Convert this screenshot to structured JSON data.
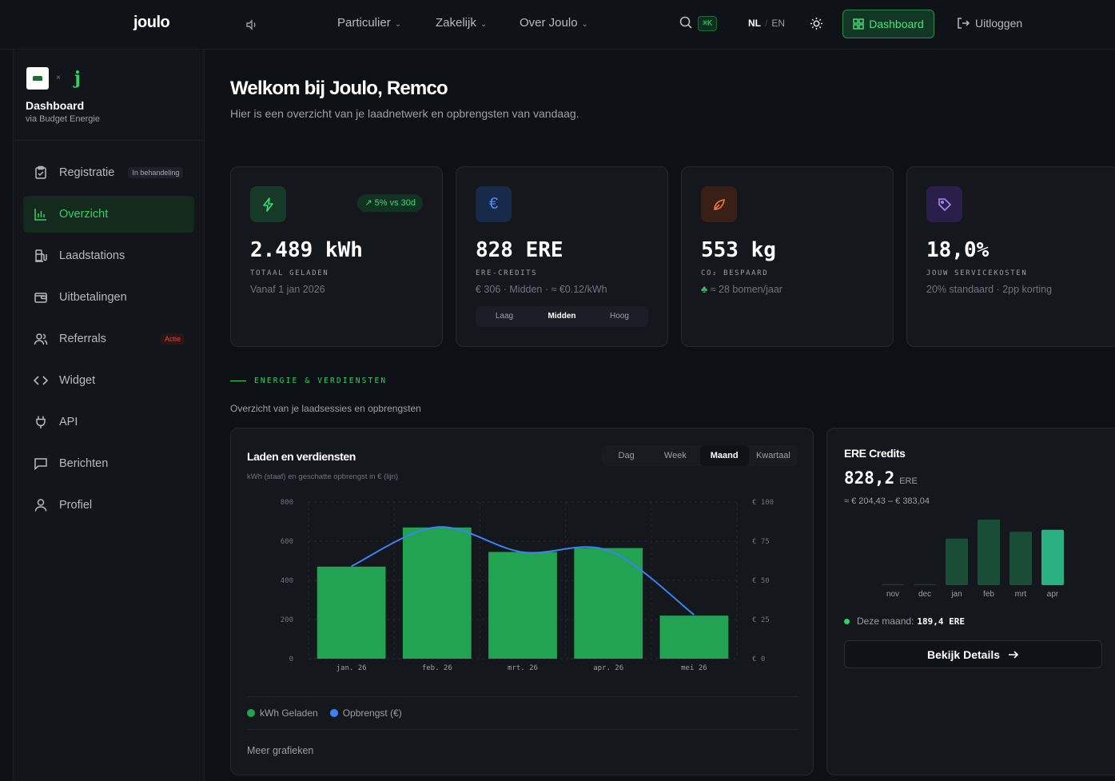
{
  "nav": {
    "logo": "joulo",
    "links": [
      {
        "label": "Particulier"
      },
      {
        "label": "Zakelijk"
      },
      {
        "label": "Over Joulo"
      }
    ],
    "shortcut": "⌘K",
    "lang_active": "NL",
    "lang_other": "EN",
    "dashboard_label": "Dashboard",
    "logout_label": "Uitloggen"
  },
  "sidebar": {
    "title": "Dashboard",
    "subtitle": "via Budget Energie",
    "brand_sep": "×",
    "brand_mark": "j",
    "items": [
      {
        "label": "Registratie",
        "badge": "In behandeling",
        "icon": "clipboard-check-icon"
      },
      {
        "label": "Overzicht",
        "icon": "bar-chart-icon",
        "active": true
      },
      {
        "label": "Laadstations",
        "icon": "fuel-pump-icon"
      },
      {
        "label": "Uitbetalingen",
        "icon": "wallet-icon"
      },
      {
        "label": "Referrals",
        "badge": "Actie",
        "icon": "users-icon"
      },
      {
        "label": "Widget",
        "icon": "code-icon"
      },
      {
        "label": "API",
        "icon": "plug-icon"
      },
      {
        "label": "Berichten",
        "icon": "message-icon"
      },
      {
        "label": "Profiel",
        "icon": "user-icon"
      }
    ]
  },
  "main": {
    "title": "Welkom bij Joulo, Remco",
    "subtitle": "Hier is een overzicht van je laadnetwerk en opbrengsten van vandaag."
  },
  "stats": [
    {
      "value": "2.489 kWh",
      "label": "TOTAAL GELADEN",
      "note": "Vanaf 1 jan 2026",
      "trend": "5% vs 30d",
      "icon": "bolt-icon",
      "icon_bg": "#173a28",
      "icon_color": "#3dd97a"
    },
    {
      "value": "828 ERE",
      "label": "ERE-CREDITS",
      "note": "€ 306 · Midden · ≈ €0.12/kWh",
      "icon": "euro-icon",
      "icon_bg": "#172a4a",
      "icon_color": "#4e8df5",
      "segments": [
        "Laag",
        "Midden",
        "Hoog"
      ],
      "segment_active": "Midden"
    },
    {
      "value": "553 kg",
      "label": "CO₂ BESPAARD",
      "note": "≈ 28 bomen/jaar",
      "icon": "leaf-icon",
      "icon_bg": "#3a1f17",
      "icon_color": "#f07a3c"
    },
    {
      "value": "18,0%",
      "label": "JOUW SERVICEKOSTEN",
      "note": "20% standaard · 2pp korting",
      "icon": "tag-icon",
      "icon_bg": "#2a1f4a",
      "icon_color": "#a98bf5"
    }
  ],
  "section": {
    "heading": "ENERGIE & VERDIENSTEN",
    "subheading": "Overzicht van je laadsessies en opbrengsten"
  },
  "chart_card": {
    "title": "Laden en verdiensten",
    "subtitle": "kWh (staaf) en geschatte opbrengst in € (lijn)",
    "tabs": [
      "Dag",
      "Week",
      "Maand",
      "Kwartaal"
    ],
    "tab_active": "Maand",
    "more_label": "Meer grafieken"
  },
  "chart_data": [
    {
      "type": "bar",
      "categories": [
        "jan. 26",
        "feb. 26",
        "mrt. 26",
        "apr. 26",
        "mei 26"
      ],
      "series": [
        {
          "name": "kWh Geladen",
          "type": "bar",
          "axis": "left",
          "values": [
            470,
            670,
            545,
            565,
            220
          ],
          "color": "#21a352"
        },
        {
          "name": "Opbrengst (€)",
          "type": "line",
          "axis": "right",
          "values": [
            59,
            84,
            68,
            69,
            28
          ],
          "color": "#3b82f6"
        }
      ],
      "ylim_left": [
        0,
        800
      ],
      "yticks_left": [
        "0",
        "200",
        "400",
        "600",
        "800"
      ],
      "ylim_right": [
        0,
        100
      ],
      "yticks_right": [
        "€ 0",
        "€ 25",
        "€ 50",
        "€ 75",
        "€ 100"
      ],
      "grid": true,
      "legend": "bottom-left"
    },
    {
      "type": "bar",
      "categories": [
        "nov",
        "dec",
        "jan",
        "feb",
        "mrt",
        "apr"
      ],
      "values": [
        0,
        0,
        142,
        200,
        163,
        169
      ],
      "colors": [
        "#1e3a2e",
        "#1e3a2e",
        "#1a4d36",
        "#1a4d36",
        "#1a4d36",
        "#2bb083"
      ]
    }
  ],
  "ere_card": {
    "title": "ERE Credits",
    "value": "828,2",
    "unit": "ERE",
    "range": "≈ € 204,43 – € 383,04",
    "month_label": "Deze maand:",
    "month_value": "189,4 ERE",
    "details_label": "Bekijk Details"
  }
}
